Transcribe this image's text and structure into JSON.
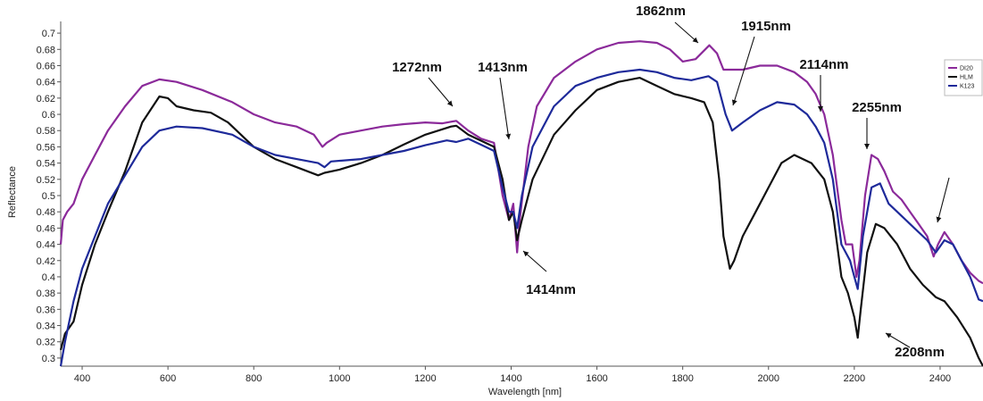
{
  "chart_data": {
    "type": "line",
    "xlabel": "Wavelength [nm]",
    "ylabel": "Reflectance",
    "xlim": [
      350,
      2500
    ],
    "ylim": [
      0.29,
      0.71
    ],
    "x_ticks": [
      400,
      600,
      800,
      1000,
      1200,
      1400,
      1600,
      1800,
      2000,
      2200,
      2400
    ],
    "y_ticks": [
      0.3,
      0.32,
      0.34,
      0.36,
      0.38,
      0.4,
      0.42,
      0.44,
      0.46,
      0.48,
      0.5,
      0.52,
      0.54,
      0.56,
      0.58,
      0.6,
      0.62,
      0.64,
      0.66,
      0.68,
      0.7
    ],
    "y_tick_labels": [
      "0.3",
      "0.32",
      "0.34",
      "0.36",
      "0.38",
      "0.4",
      "0.42",
      "0.44",
      "0.46",
      "0.48",
      "0.5",
      "0.52",
      "0.54",
      "0.56",
      "0.58",
      "0.6",
      "0.62",
      "0.64",
      "0.66",
      "0.68",
      "0.7"
    ],
    "grid": false,
    "legend_position": "top-right",
    "series": [
      {
        "name": "DI20",
        "color": "#8b2a9a",
        "points": [
          [
            350,
            0.44
          ],
          [
            355,
            0.47
          ],
          [
            365,
            0.48
          ],
          [
            380,
            0.49
          ],
          [
            400,
            0.52
          ],
          [
            430,
            0.55
          ],
          [
            460,
            0.58
          ],
          [
            500,
            0.61
          ],
          [
            540,
            0.635
          ],
          [
            580,
            0.643
          ],
          [
            620,
            0.64
          ],
          [
            680,
            0.63
          ],
          [
            750,
            0.615
          ],
          [
            800,
            0.6
          ],
          [
            850,
            0.59
          ],
          [
            900,
            0.585
          ],
          [
            940,
            0.575
          ],
          [
            960,
            0.56
          ],
          [
            970,
            0.565
          ],
          [
            1000,
            0.575
          ],
          [
            1050,
            0.58
          ],
          [
            1100,
            0.585
          ],
          [
            1150,
            0.588
          ],
          [
            1200,
            0.59
          ],
          [
            1240,
            0.589
          ],
          [
            1272,
            0.592
          ],
          [
            1300,
            0.58
          ],
          [
            1330,
            0.57
          ],
          [
            1360,
            0.565
          ],
          [
            1380,
            0.5
          ],
          [
            1395,
            0.47
          ],
          [
            1405,
            0.49
          ],
          [
            1414,
            0.43
          ],
          [
            1420,
            0.47
          ],
          [
            1440,
            0.56
          ],
          [
            1460,
            0.61
          ],
          [
            1500,
            0.645
          ],
          [
            1550,
            0.665
          ],
          [
            1600,
            0.68
          ],
          [
            1650,
            0.688
          ],
          [
            1700,
            0.69
          ],
          [
            1740,
            0.688
          ],
          [
            1770,
            0.68
          ],
          [
            1800,
            0.665
          ],
          [
            1830,
            0.668
          ],
          [
            1862,
            0.685
          ],
          [
            1880,
            0.675
          ],
          [
            1895,
            0.655
          ],
          [
            1915,
            0.655
          ],
          [
            1940,
            0.655
          ],
          [
            1980,
            0.66
          ],
          [
            2020,
            0.66
          ],
          [
            2060,
            0.652
          ],
          [
            2090,
            0.64
          ],
          [
            2110,
            0.625
          ],
          [
            2130,
            0.6
          ],
          [
            2150,
            0.55
          ],
          [
            2170,
            0.47
          ],
          [
            2180,
            0.44
          ],
          [
            2195,
            0.44
          ],
          [
            2205,
            0.4
          ],
          [
            2212,
            0.42
          ],
          [
            2225,
            0.5
          ],
          [
            2240,
            0.55
          ],
          [
            2255,
            0.545
          ],
          [
            2270,
            0.53
          ],
          [
            2290,
            0.505
          ],
          [
            2310,
            0.495
          ],
          [
            2330,
            0.48
          ],
          [
            2350,
            0.465
          ],
          [
            2370,
            0.45
          ],
          [
            2385,
            0.425
          ],
          [
            2395,
            0.44
          ],
          [
            2410,
            0.455
          ],
          [
            2430,
            0.44
          ],
          [
            2450,
            0.42
          ],
          [
            2470,
            0.405
          ],
          [
            2490,
            0.395
          ],
          [
            2500,
            0.392
          ]
        ]
      },
      {
        "name": "HLM",
        "color": "#111111",
        "points": [
          [
            350,
            0.31
          ],
          [
            360,
            0.33
          ],
          [
            380,
            0.345
          ],
          [
            400,
            0.39
          ],
          [
            430,
            0.44
          ],
          [
            460,
            0.48
          ],
          [
            500,
            0.53
          ],
          [
            540,
            0.59
          ],
          [
            580,
            0.622
          ],
          [
            600,
            0.62
          ],
          [
            620,
            0.61
          ],
          [
            660,
            0.605
          ],
          [
            700,
            0.602
          ],
          [
            740,
            0.59
          ],
          [
            800,
            0.56
          ],
          [
            850,
            0.545
          ],
          [
            900,
            0.535
          ],
          [
            950,
            0.525
          ],
          [
            965,
            0.528
          ],
          [
            1000,
            0.532
          ],
          [
            1050,
            0.54
          ],
          [
            1100,
            0.55
          ],
          [
            1150,
            0.563
          ],
          [
            1200,
            0.575
          ],
          [
            1260,
            0.585
          ],
          [
            1272,
            0.586
          ],
          [
            1300,
            0.575
          ],
          [
            1340,
            0.565
          ],
          [
            1360,
            0.56
          ],
          [
            1380,
            0.52
          ],
          [
            1395,
            0.47
          ],
          [
            1405,
            0.48
          ],
          [
            1414,
            0.445
          ],
          [
            1425,
            0.47
          ],
          [
            1450,
            0.52
          ],
          [
            1500,
            0.575
          ],
          [
            1550,
            0.605
          ],
          [
            1600,
            0.63
          ],
          [
            1650,
            0.64
          ],
          [
            1700,
            0.645
          ],
          [
            1740,
            0.635
          ],
          [
            1780,
            0.625
          ],
          [
            1820,
            0.62
          ],
          [
            1850,
            0.615
          ],
          [
            1870,
            0.59
          ],
          [
            1885,
            0.52
          ],
          [
            1895,
            0.45
          ],
          [
            1910,
            0.41
          ],
          [
            1920,
            0.42
          ],
          [
            1940,
            0.45
          ],
          [
            1970,
            0.48
          ],
          [
            2000,
            0.51
          ],
          [
            2030,
            0.54
          ],
          [
            2060,
            0.55
          ],
          [
            2100,
            0.54
          ],
          [
            2130,
            0.52
          ],
          [
            2150,
            0.48
          ],
          [
            2170,
            0.4
          ],
          [
            2185,
            0.38
          ],
          [
            2200,
            0.35
          ],
          [
            2208,
            0.325
          ],
          [
            2215,
            0.36
          ],
          [
            2230,
            0.43
          ],
          [
            2250,
            0.465
          ],
          [
            2270,
            0.46
          ],
          [
            2300,
            0.44
          ],
          [
            2330,
            0.41
          ],
          [
            2360,
            0.39
          ],
          [
            2390,
            0.375
          ],
          [
            2410,
            0.37
          ],
          [
            2440,
            0.35
          ],
          [
            2470,
            0.325
          ],
          [
            2490,
            0.3
          ],
          [
            2500,
            0.29
          ]
        ]
      },
      {
        "name": "K123",
        "color": "#1e2a9a",
        "points": [
          [
            350,
            0.29
          ],
          [
            360,
            0.32
          ],
          [
            380,
            0.37
          ],
          [
            400,
            0.41
          ],
          [
            430,
            0.45
          ],
          [
            460,
            0.49
          ],
          [
            500,
            0.525
          ],
          [
            540,
            0.56
          ],
          [
            580,
            0.58
          ],
          [
            620,
            0.585
          ],
          [
            680,
            0.583
          ],
          [
            750,
            0.575
          ],
          [
            800,
            0.56
          ],
          [
            850,
            0.55
          ],
          [
            900,
            0.545
          ],
          [
            950,
            0.54
          ],
          [
            965,
            0.535
          ],
          [
            980,
            0.542
          ],
          [
            1050,
            0.545
          ],
          [
            1100,
            0.55
          ],
          [
            1150,
            0.555
          ],
          [
            1200,
            0.562
          ],
          [
            1250,
            0.568
          ],
          [
            1272,
            0.566
          ],
          [
            1300,
            0.57
          ],
          [
            1340,
            0.56
          ],
          [
            1360,
            0.555
          ],
          [
            1380,
            0.51
          ],
          [
            1395,
            0.48
          ],
          [
            1405,
            0.48
          ],
          [
            1414,
            0.46
          ],
          [
            1425,
            0.5
          ],
          [
            1450,
            0.56
          ],
          [
            1500,
            0.61
          ],
          [
            1550,
            0.635
          ],
          [
            1600,
            0.645
          ],
          [
            1650,
            0.652
          ],
          [
            1700,
            0.655
          ],
          [
            1740,
            0.652
          ],
          [
            1780,
            0.645
          ],
          [
            1820,
            0.642
          ],
          [
            1860,
            0.647
          ],
          [
            1880,
            0.64
          ],
          [
            1900,
            0.6
          ],
          [
            1915,
            0.58
          ],
          [
            1940,
            0.59
          ],
          [
            1980,
            0.605
          ],
          [
            2020,
            0.615
          ],
          [
            2060,
            0.612
          ],
          [
            2090,
            0.6
          ],
          [
            2110,
            0.585
          ],
          [
            2130,
            0.565
          ],
          [
            2150,
            0.52
          ],
          [
            2170,
            0.44
          ],
          [
            2190,
            0.42
          ],
          [
            2200,
            0.4
          ],
          [
            2208,
            0.385
          ],
          [
            2220,
            0.45
          ],
          [
            2240,
            0.51
          ],
          [
            2260,
            0.515
          ],
          [
            2280,
            0.49
          ],
          [
            2310,
            0.475
          ],
          [
            2340,
            0.46
          ],
          [
            2370,
            0.445
          ],
          [
            2390,
            0.43
          ],
          [
            2410,
            0.445
          ],
          [
            2430,
            0.44
          ],
          [
            2450,
            0.42
          ],
          [
            2470,
            0.4
          ],
          [
            2490,
            0.372
          ],
          [
            2500,
            0.37
          ]
        ]
      }
    ],
    "annotations": [
      {
        "label": "1272nm"
      },
      {
        "label": "1413nm"
      },
      {
        "label": "1414nm"
      },
      {
        "label": "1862nm"
      },
      {
        "label": "1915nm"
      },
      {
        "label": "2114nm"
      },
      {
        "label": "2255nm"
      },
      {
        "label": "2208nm"
      },
      {
        "label": ""
      }
    ]
  }
}
